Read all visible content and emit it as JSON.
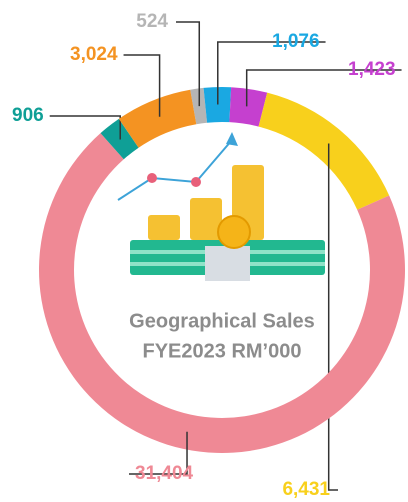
{
  "chart_data": {
    "type": "donut",
    "title": "Geographical Sales",
    "subtitle": "FYE2023 RM’000",
    "categories": [
      null,
      null,
      null,
      null,
      null,
      null,
      null
    ],
    "values": [
      524,
      1076,
      1423,
      6431,
      31404,
      906,
      3024
    ],
    "value_labels": [
      "524",
      "1,076",
      "1,423",
      "6,431",
      "31,404",
      "906",
      "3,024"
    ],
    "colors": [
      "#b5b5b5",
      "#1aa8e2",
      "#c540cf",
      "#f8d01c",
      "#ef8995",
      "#0f9f96",
      "#f49322"
    ]
  }
}
